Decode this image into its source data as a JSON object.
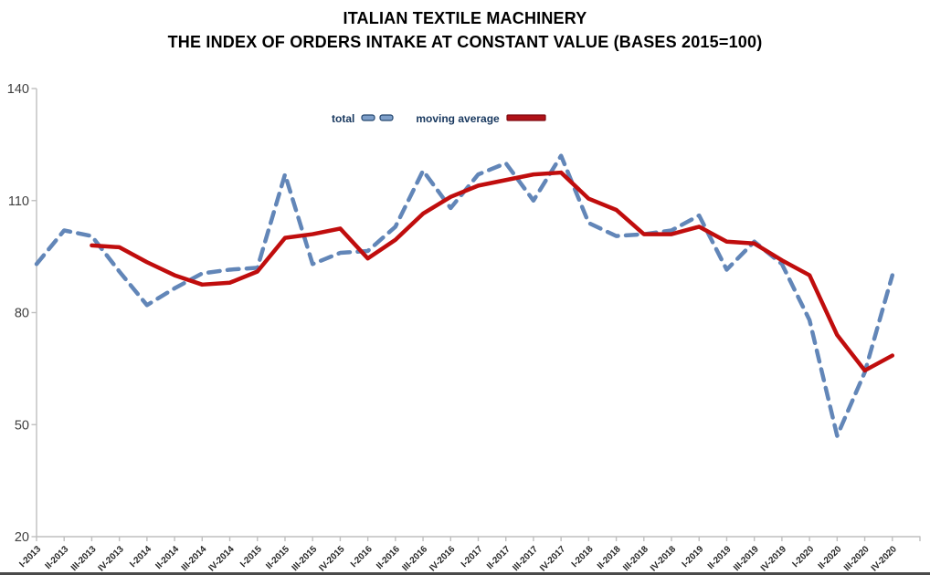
{
  "title": {
    "line1": "ITALIAN TEXTILE MACHINERY",
    "line2": "THE INDEX OF ORDERS INTAKE AT CONSTANT VALUE (BASES 2015=100)"
  },
  "legend": {
    "total_label": "total",
    "moving_average_label": "moving average"
  },
  "colors": {
    "total_line": "#6286B8",
    "total_swatch_fill": "#7E9FC9",
    "total_swatch_border": "#24476F",
    "moving_average_line": "#C00D0D",
    "moving_average_swatch_fill": "#B01218",
    "moving_average_swatch_border": "#7F0A10",
    "axis_line": "#BFBFBF",
    "y_label_text": "#404040",
    "x_label_text": "#262626",
    "title_text": "#000000",
    "legend_text": "#17375E",
    "frame_border": "#4A4A4A"
  },
  "chart_data": {
    "type": "line",
    "title": "ITALIAN TEXTILE MACHINERY — THE INDEX OF ORDERS INTAKE AT CONSTANT VALUE (BASES 2015=100)",
    "xlabel": "",
    "ylabel": "",
    "ylim": [
      20,
      140
    ],
    "yticks": [
      140,
      110,
      80,
      50,
      20
    ],
    "grid": false,
    "legend_position": "top-center",
    "categories": [
      "I-2013",
      "II-2013",
      "III-2013",
      "IV-2013",
      "I-2014",
      "II-2014",
      "III-2014",
      "IV-2014",
      "I-2015",
      "II-2015",
      "III-2015",
      "IV-2015",
      "I-2016",
      "II-2016",
      "III-2016",
      "IV-2016",
      "I-2017",
      "II-2017",
      "III-2017",
      "IV-2017",
      "I-2018",
      "II-2018",
      "III-2018",
      "IV-2018",
      "I-2019",
      "II-2019",
      "III-2019",
      "IV-2019",
      "I-2020",
      "II-2020",
      "III-2020",
      "IV-2020"
    ],
    "series": [
      {
        "name": "total",
        "style": "dashed",
        "color": "#6286B8",
        "values": [
          93,
          102,
          100.5,
          91,
          82,
          86.5,
          90.5,
          91.5,
          92,
          117,
          93,
          96,
          96.5,
          103,
          118,
          108,
          117,
          120,
          110,
          122,
          104,
          100.5,
          101,
          102,
          106,
          91.5,
          99,
          93,
          78,
          47,
          64,
          90
        ]
      },
      {
        "name": "moving average",
        "style": "solid",
        "color": "#C00D0D",
        "values": [
          null,
          null,
          98,
          97.5,
          93.5,
          90,
          87.5,
          88,
          91,
          100,
          101,
          102.5,
          94.5,
          99.5,
          106.5,
          111,
          114,
          115.5,
          117,
          117.5,
          110.5,
          107.5,
          101,
          101,
          103,
          99,
          98.5,
          94,
          90,
          74,
          64.5,
          68.5
        ]
      }
    ]
  }
}
